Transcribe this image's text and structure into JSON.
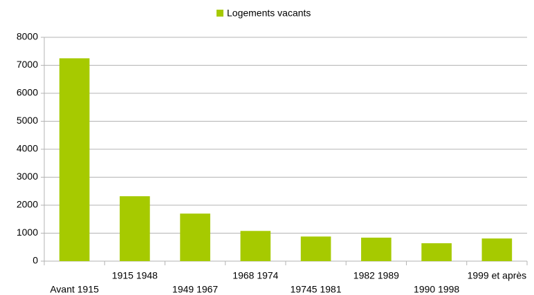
{
  "chart_data": {
    "type": "bar",
    "categories": [
      "Avant 1915",
      "1915 1948",
      "1949 1967",
      "1968 1974",
      "19745 1981",
      "1982 1989",
      "1990 1998",
      "1999 et après"
    ],
    "series": [
      {
        "name": "Logements vacants",
        "color": "#a6ca00",
        "values": [
          7250,
          2320,
          1700,
          1080,
          880,
          840,
          640,
          810
        ]
      }
    ],
    "ylim": [
      0,
      8000
    ],
    "yticks": [
      0,
      1000,
      2000,
      3000,
      4000,
      5000,
      6000,
      7000,
      8000
    ],
    "grid": true,
    "legend": "top"
  }
}
